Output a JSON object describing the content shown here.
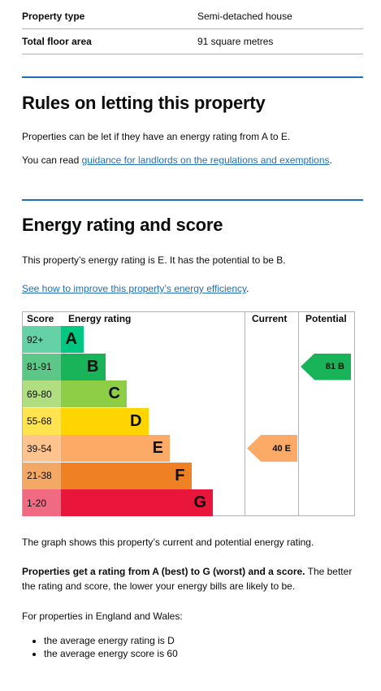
{
  "summary": [
    {
      "key": "Property type",
      "value": "Semi-detached house"
    },
    {
      "key": "Total floor area",
      "value": "91 square metres"
    }
  ],
  "letting": {
    "heading": "Rules on letting this property",
    "intro": "Properties can be let if they have an energy rating from A to E.",
    "read_prefix": "You can read ",
    "read_link": "guidance for landlords on the regulations and exemptions",
    "read_suffix": "."
  },
  "energy": {
    "heading": "Energy rating and score",
    "statement": "This property’s energy rating is E. It has the potential to be B.",
    "improve_link": "See how to improve this property’s energy efficiency",
    "improve_suffix": "."
  },
  "chart_data": {
    "type": "table",
    "columns": [
      "Score",
      "Energy rating",
      "Current",
      "Potential"
    ],
    "bands": [
      {
        "score": "92+",
        "letter": "A",
        "color": "#00c781",
        "score_bg": "#65d1a6"
      },
      {
        "score": "81-91",
        "letter": "B",
        "color": "#19b459",
        "score_bg": "#5cc888"
      },
      {
        "score": "69-80",
        "letter": "C",
        "color": "#8dce46",
        "score_bg": "#b0de80"
      },
      {
        "score": "55-68",
        "letter": "D",
        "color": "#ffd500",
        "score_bg": "#ffe34f"
      },
      {
        "score": "39-54",
        "letter": "E",
        "color": "#fcaa65",
        "score_bg": "#fdc490"
      },
      {
        "score": "21-38",
        "letter": "F",
        "color": "#ef8023",
        "score_bg": "#f4a866"
      },
      {
        "score": "1-20",
        "letter": "G",
        "color": "#e9153b",
        "score_bg": "#f06b82"
      }
    ],
    "current": {
      "score": 40,
      "letter": "E",
      "label": "40 E",
      "band": "E"
    },
    "potential": {
      "score": 81,
      "letter": "B",
      "label": "81 B",
      "band": "B"
    }
  },
  "after_chart": {
    "graph_note": "The graph shows this property’s current and potential energy rating.",
    "bold_lead": "Properties get a rating from A (best) to G (worst) and a score.",
    "rest": " The better the rating and score, the lower your energy bills are likely to be.",
    "england_intro": "For properties in England and Wales:",
    "bullets": [
      "the average energy rating is D",
      "the average energy score is 60"
    ]
  }
}
